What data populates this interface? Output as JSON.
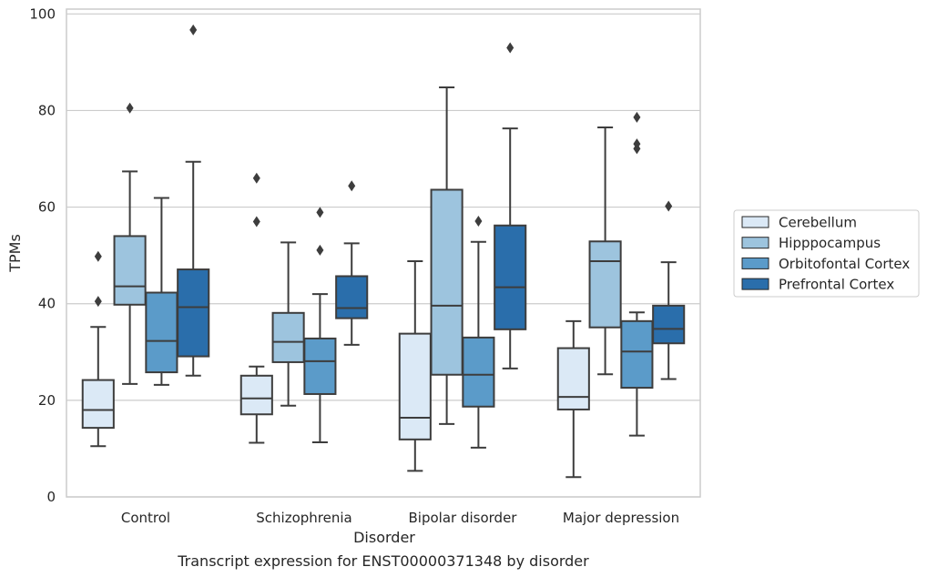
{
  "chart_data": {
    "type": "box",
    "title": "Transcript expression for ENST00000371348 by disorder",
    "xlabel": "Disorder",
    "ylabel": "TPMs",
    "ylim": [
      0,
      101
    ],
    "yticks": [
      0,
      20,
      40,
      60,
      80,
      100
    ],
    "grid": "horizontal",
    "legend_position": "right",
    "categories": [
      "Control",
      "Schizophrenia",
      "Bipolar disorder",
      "Major depression"
    ],
    "series": [
      {
        "name": "Cerebellum",
        "color": "#dbe9f6",
        "boxes": [
          {
            "whislo": 10.5,
            "q1": 14.3,
            "med": 18.0,
            "q3": 24.2,
            "whishi": 35.2,
            "fliers": [
              40.5,
              49.8
            ]
          },
          {
            "whislo": 11.2,
            "q1": 17.1,
            "med": 20.4,
            "q3": 25.1,
            "whishi": 27.0,
            "fliers": [
              57.0,
              66.0
            ]
          },
          {
            "whislo": 5.4,
            "q1": 11.9,
            "med": 16.4,
            "q3": 33.8,
            "whishi": 48.8,
            "fliers": []
          },
          {
            "whislo": 4.1,
            "q1": 18.1,
            "med": 20.7,
            "q3": 30.8,
            "whishi": 36.4,
            "fliers": []
          }
        ]
      },
      {
        "name": "Hipppocampus",
        "color": "#9dc4de",
        "boxes": [
          {
            "whislo": 23.4,
            "q1": 39.8,
            "med": 43.6,
            "q3": 54.0,
            "whishi": 67.4,
            "fliers": [
              80.5
            ]
          },
          {
            "whislo": 18.9,
            "q1": 27.9,
            "med": 32.1,
            "q3": 38.1,
            "whishi": 52.7,
            "fliers": []
          },
          {
            "whislo": 15.1,
            "q1": 25.3,
            "med": 39.6,
            "q3": 63.6,
            "whishi": 84.8,
            "fliers": []
          },
          {
            "whislo": 25.4,
            "q1": 35.1,
            "med": 48.8,
            "q3": 52.9,
            "whishi": 76.5,
            "fliers": []
          }
        ]
      },
      {
        "name": "Orbitofontal Cortex",
        "color": "#5b9bc9",
        "boxes": [
          {
            "whislo": 23.2,
            "q1": 25.8,
            "med": 32.3,
            "q3": 42.3,
            "whishi": 61.9,
            "fliers": []
          },
          {
            "whislo": 11.3,
            "q1": 21.3,
            "med": 28.1,
            "q3": 32.8,
            "whishi": 42.0,
            "fliers": [
              51.1,
              58.9
            ]
          },
          {
            "whislo": 10.2,
            "q1": 18.7,
            "med": 25.3,
            "q3": 33.0,
            "whishi": 52.8,
            "fliers": [
              57.1
            ]
          },
          {
            "whislo": 12.7,
            "q1": 22.6,
            "med": 30.1,
            "q3": 36.4,
            "whishi": 38.2,
            "fliers": [
              72.1,
              73.1,
              78.6
            ]
          }
        ]
      },
      {
        "name": "Prefrontal Cortex",
        "color": "#2a6eab",
        "boxes": [
          {
            "whislo": 25.1,
            "q1": 29.1,
            "med": 39.3,
            "q3": 47.1,
            "whishi": 69.4,
            "fliers": [
              96.7
            ]
          },
          {
            "whislo": 31.5,
            "q1": 37.0,
            "med": 39.1,
            "q3": 45.7,
            "whishi": 52.5,
            "fliers": [
              64.4
            ]
          },
          {
            "whislo": 26.6,
            "q1": 34.7,
            "med": 43.4,
            "q3": 56.2,
            "whishi": 76.3,
            "fliers": [
              93.0
            ]
          },
          {
            "whislo": 24.4,
            "q1": 31.8,
            "med": 34.8,
            "q3": 39.6,
            "whishi": 48.6,
            "fliers": [
              60.2
            ]
          }
        ]
      }
    ]
  }
}
